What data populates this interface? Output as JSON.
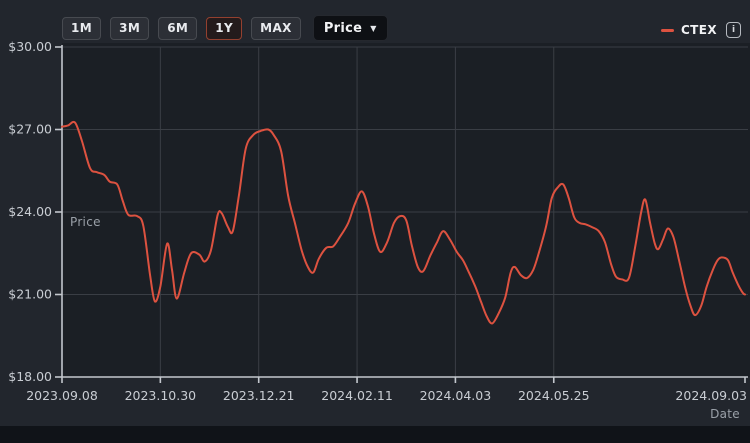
{
  "toolbar": {
    "ranges": [
      {
        "label": "1M",
        "selected": false
      },
      {
        "label": "3M",
        "selected": false
      },
      {
        "label": "6M",
        "selected": false
      },
      {
        "label": "1Y",
        "selected": true
      },
      {
        "label": "MAX",
        "selected": false
      }
    ],
    "metric_label": "Price",
    "metric_caret": "▼"
  },
  "legend": {
    "series_name": "CTEX",
    "color": "#dd5240",
    "info_glyph": "i"
  },
  "chart_data": {
    "type": "line",
    "title": "",
    "xlabel": "Date",
    "ylabel": "Price",
    "ylim": [
      18,
      30
    ],
    "grid": true,
    "legend_position": "top-right",
    "y_ticks": [
      {
        "label": "$30.00",
        "value": 30
      },
      {
        "label": "$27.00",
        "value": 27
      },
      {
        "label": "$24.00",
        "value": 24
      },
      {
        "label": "$21.00",
        "value": 21
      },
      {
        "label": "$18.00",
        "value": 18
      }
    ],
    "x_ticks": [
      {
        "label": "2023.09.08",
        "pos": 0
      },
      {
        "label": "2023.10.30",
        "pos": 0.144
      },
      {
        "label": "2023.12.21",
        "pos": 0.288
      },
      {
        "label": "2024.02.11",
        "pos": 0.432
      },
      {
        "label": "2024.04.03",
        "pos": 0.576
      },
      {
        "label": "2024.05.25",
        "pos": 0.72
      },
      {
        "label": "2024.09.03",
        "pos": 1
      }
    ],
    "series": [
      {
        "name": "CTEX",
        "color": "#dd5240",
        "points": [
          [
            0,
            27.1
          ],
          [
            0.009,
            27.15
          ],
          [
            0.019,
            27.25
          ],
          [
            0.029,
            26.6
          ],
          [
            0.041,
            25.6
          ],
          [
            0.051,
            25.45
          ],
          [
            0.062,
            25.35
          ],
          [
            0.07,
            25.1
          ],
          [
            0.081,
            25.0
          ],
          [
            0.089,
            24.4
          ],
          [
            0.097,
            23.9
          ],
          [
            0.11,
            23.85
          ],
          [
            0.119,
            23.5
          ],
          [
            0.129,
            21.7
          ],
          [
            0.136,
            20.75
          ],
          [
            0.144,
            21.3
          ],
          [
            0.154,
            22.85
          ],
          [
            0.161,
            21.9
          ],
          [
            0.168,
            20.85
          ],
          [
            0.179,
            21.8
          ],
          [
            0.189,
            22.5
          ],
          [
            0.201,
            22.45
          ],
          [
            0.209,
            22.2
          ],
          [
            0.218,
            22.6
          ],
          [
            0.228,
            23.9
          ],
          [
            0.234,
            23.95
          ],
          [
            0.243,
            23.45
          ],
          [
            0.25,
            23.3
          ],
          [
            0.259,
            24.6
          ],
          [
            0.269,
            26.3
          ],
          [
            0.28,
            26.8
          ],
          [
            0.291,
            26.95
          ],
          [
            0.302,
            27.0
          ],
          [
            0.31,
            26.8
          ],
          [
            0.321,
            26.2
          ],
          [
            0.331,
            24.6
          ],
          [
            0.341,
            23.6
          ],
          [
            0.351,
            22.6
          ],
          [
            0.36,
            22.0
          ],
          [
            0.368,
            21.8
          ],
          [
            0.376,
            22.3
          ],
          [
            0.387,
            22.7
          ],
          [
            0.397,
            22.75
          ],
          [
            0.407,
            23.1
          ],
          [
            0.419,
            23.6
          ],
          [
            0.429,
            24.3
          ],
          [
            0.439,
            24.75
          ],
          [
            0.448,
            24.2
          ],
          [
            0.457,
            23.2
          ],
          [
            0.466,
            22.55
          ],
          [
            0.476,
            22.9
          ],
          [
            0.486,
            23.6
          ],
          [
            0.495,
            23.85
          ],
          [
            0.504,
            23.7
          ],
          [
            0.512,
            22.8
          ],
          [
            0.521,
            22.0
          ],
          [
            0.529,
            21.85
          ],
          [
            0.539,
            22.4
          ],
          [
            0.549,
            22.9
          ],
          [
            0.558,
            23.3
          ],
          [
            0.568,
            23.0
          ],
          [
            0.578,
            22.55
          ],
          [
            0.587,
            22.25
          ],
          [
            0.594,
            21.9
          ],
          [
            0.605,
            21.3
          ],
          [
            0.614,
            20.7
          ],
          [
            0.622,
            20.2
          ],
          [
            0.63,
            19.95
          ],
          [
            0.64,
            20.35
          ],
          [
            0.649,
            20.9
          ],
          [
            0.657,
            21.8
          ],
          [
            0.663,
            22.0
          ],
          [
            0.672,
            21.7
          ],
          [
            0.681,
            21.6
          ],
          [
            0.69,
            21.9
          ],
          [
            0.698,
            22.5
          ],
          [
            0.709,
            23.5
          ],
          [
            0.717,
            24.5
          ],
          [
            0.726,
            24.9
          ],
          [
            0.734,
            25.0
          ],
          [
            0.742,
            24.5
          ],
          [
            0.75,
            23.8
          ],
          [
            0.758,
            23.6
          ],
          [
            0.767,
            23.55
          ],
          [
            0.776,
            23.45
          ],
          [
            0.786,
            23.3
          ],
          [
            0.795,
            22.9
          ],
          [
            0.804,
            22.1
          ],
          [
            0.811,
            21.65
          ],
          [
            0.82,
            21.55
          ],
          [
            0.83,
            21.6
          ],
          [
            0.839,
            22.7
          ],
          [
            0.848,
            24.0
          ],
          [
            0.854,
            24.45
          ],
          [
            0.861,
            23.6
          ],
          [
            0.868,
            22.85
          ],
          [
            0.873,
            22.65
          ],
          [
            0.88,
            23.0
          ],
          [
            0.887,
            23.4
          ],
          [
            0.895,
            23.1
          ],
          [
            0.903,
            22.3
          ],
          [
            0.912,
            21.3
          ],
          [
            0.92,
            20.6
          ],
          [
            0.927,
            20.25
          ],
          [
            0.936,
            20.6
          ],
          [
            0.944,
            21.3
          ],
          [
            0.953,
            21.9
          ],
          [
            0.96,
            22.25
          ],
          [
            0.966,
            22.35
          ],
          [
            0.975,
            22.25
          ],
          [
            0.982,
            21.8
          ],
          [
            0.99,
            21.35
          ],
          [
            0.997,
            21.05
          ],
          [
            1,
            21.0
          ]
        ]
      }
    ]
  }
}
